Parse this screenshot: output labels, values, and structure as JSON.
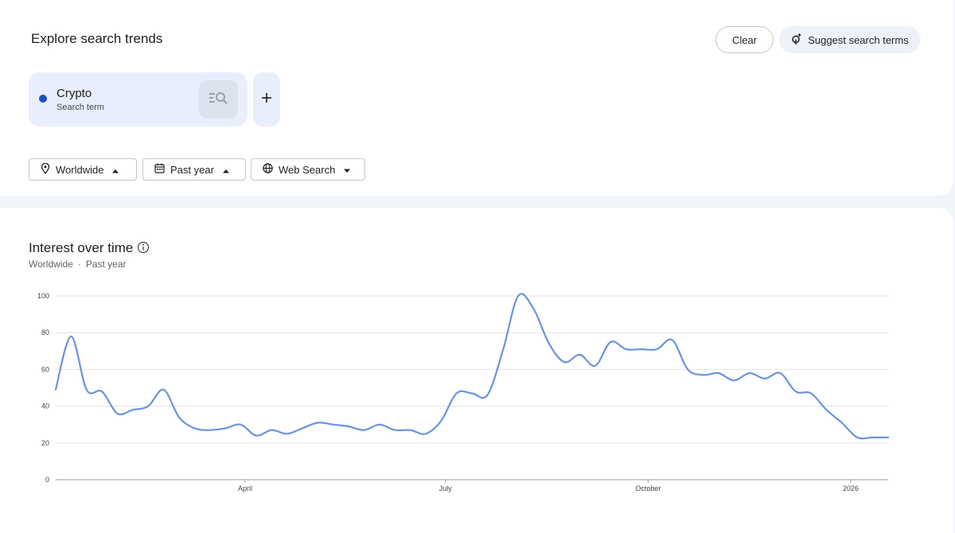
{
  "header": {
    "title": "Explore search trends"
  },
  "actions": {
    "clear_label": "Clear",
    "suggest_label": "Suggest search terms"
  },
  "term": {
    "name": "Crypto",
    "type": "Search term",
    "color": "#1a4fc6"
  },
  "filters": {
    "location": "Worldwide",
    "time": "Past year",
    "property": "Web Search"
  },
  "chart_section": {
    "title": "Interest over time",
    "subtitle_location": "Worldwide",
    "subtitle_separator": "·",
    "subtitle_time": "Past year"
  },
  "chart_data": {
    "type": "line",
    "title": "Interest over time",
    "xlabel": "",
    "ylabel": "",
    "ylim": [
      0,
      100
    ],
    "yticks": [
      0,
      20,
      40,
      60,
      80,
      100
    ],
    "xticks": [
      {
        "label": "April",
        "x": "2025-04-01"
      },
      {
        "label": "July",
        "x": "2025-07-01"
      },
      {
        "label": "October",
        "x": "2025-10-01"
      },
      {
        "label": "2026",
        "x": "2026-01-01"
      }
    ],
    "xlim": [
      "2025-01-05",
      "2026-01-18"
    ],
    "grid": true,
    "line_color": "#6c93df",
    "series": [
      {
        "x": [
          "2025-01-05",
          "2025-01-12",
          "2025-01-19",
          "2025-01-26",
          "2025-02-02",
          "2025-02-09",
          "2025-02-16",
          "2025-02-23",
          "2025-03-02",
          "2025-03-09",
          "2025-03-16",
          "2025-03-23",
          "2025-03-30",
          "2025-04-06",
          "2025-04-13",
          "2025-04-20",
          "2025-04-27",
          "2025-05-04",
          "2025-05-11",
          "2025-05-18",
          "2025-05-25",
          "2025-06-01",
          "2025-06-08",
          "2025-06-15",
          "2025-06-22",
          "2025-06-29",
          "2025-07-06",
          "2025-07-13",
          "2025-07-20",
          "2025-07-27",
          "2025-08-03",
          "2025-08-10",
          "2025-08-17",
          "2025-08-24",
          "2025-08-31",
          "2025-09-07",
          "2025-09-14",
          "2025-09-21",
          "2025-09-28",
          "2025-10-05",
          "2025-10-12",
          "2025-10-19",
          "2025-10-26",
          "2025-11-02",
          "2025-11-09",
          "2025-11-16",
          "2025-11-23",
          "2025-11-30",
          "2025-12-07",
          "2025-12-14",
          "2025-12-21",
          "2025-12-28",
          "2026-01-04",
          "2026-01-11",
          "2026-01-18"
        ],
        "values": [
          49,
          78,
          49,
          48,
          36,
          38,
          40,
          49,
          34,
          28,
          27,
          28,
          30,
          24,
          27,
          25,
          28,
          31,
          30,
          29,
          27,
          30,
          27,
          27,
          25,
          32,
          47,
          47,
          46,
          70,
          100,
          93,
          74,
          64,
          68,
          62,
          75,
          71,
          71,
          71,
          76,
          60,
          57,
          58,
          54,
          58,
          55,
          58,
          48,
          47,
          38,
          31,
          23,
          23,
          23
        ]
      }
    ]
  }
}
